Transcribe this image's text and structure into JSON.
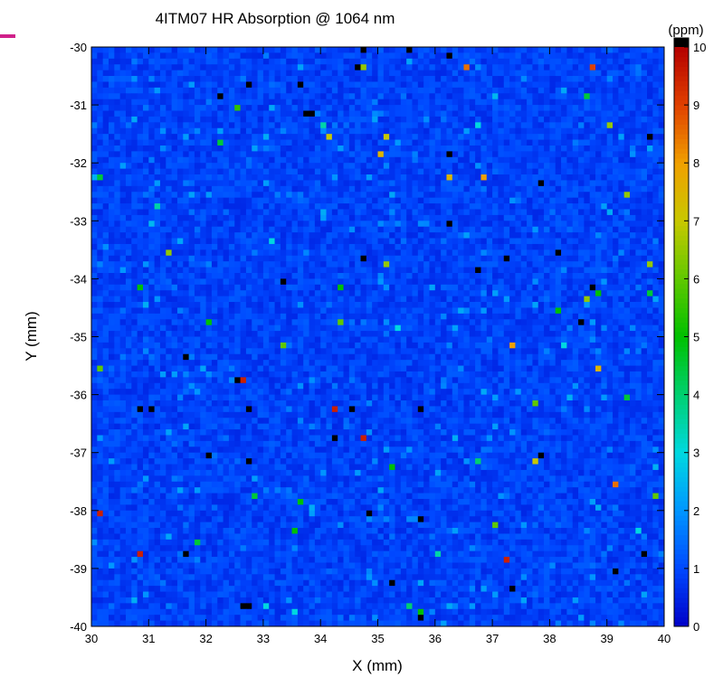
{
  "chart_data": {
    "type": "heatmap",
    "title": "4ITM07 HR Absorption @ 1064 nm",
    "xlabel": "X (mm)",
    "ylabel": "Y (mm)",
    "colorbar_label": "(ppm)",
    "xlim": [
      30,
      40
    ],
    "ylim": [
      -40,
      -30
    ],
    "zlim": [
      0,
      10
    ],
    "x_ticks": [
      "30",
      "31",
      "32",
      "33",
      "34",
      "35",
      "36",
      "37",
      "38",
      "39",
      "40"
    ],
    "y_ticks": [
      "-30",
      "-31",
      "-32",
      "-33",
      "-34",
      "-35",
      "-36",
      "-37",
      "-38",
      "-39",
      "-40"
    ],
    "colorbar_ticks": [
      "0",
      "1",
      "2",
      "3",
      "4",
      "5",
      "6",
      "7",
      "8",
      "9",
      "10"
    ],
    "grid": {
      "nx": 100,
      "ny": 100,
      "cell_mm": 0.1
    },
    "background_value": 0.9,
    "colorscale": [
      "#0000c8",
      "#0048ff",
      "#0096ff",
      "#00d8e0",
      "#00d070",
      "#00c000",
      "#60c800",
      "#c8c800",
      "#f0a000",
      "#e04000",
      "#b40000"
    ],
    "overflow_color": "#000000",
    "hot_spots": [
      {
        "x": 30.1,
        "y": -38.0,
        "v": 9.5
      },
      {
        "x": 30.8,
        "y": -38.7,
        "v": 9.5
      },
      {
        "x": 32.6,
        "y": -35.8,
        "v": 9.5
      },
      {
        "x": 34.2,
        "y": -36.2,
        "v": 9.5
      },
      {
        "x": 34.7,
        "y": -36.8,
        "v": 9.5
      },
      {
        "x": 35.2,
        "y": -37.3,
        "v": 9.3
      },
      {
        "x": 37.2,
        "y": -38.9,
        "v": 9.5
      },
      {
        "x": 38.7,
        "y": -30.4,
        "v": 9.0
      },
      {
        "x": 39.1,
        "y": -37.5,
        "v": 8.5
      },
      {
        "x": 37.4,
        "y": -35.1,
        "v": 8.0
      },
      {
        "x": 36.9,
        "y": -32.2,
        "v": 8.0
      },
      {
        "x": 36.5,
        "y": -30.3,
        "v": 8.5
      },
      {
        "x": 35.0,
        "y": -31.9,
        "v": 7.5
      },
      {
        "x": 34.1,
        "y": -31.5,
        "v": 7.0
      },
      {
        "x": 36.3,
        "y": -32.2,
        "v": 7.5
      },
      {
        "x": 38.9,
        "y": -35.5,
        "v": 7.5
      },
      {
        "x": 37.8,
        "y": -37.1,
        "v": 7.0
      },
      {
        "x": 35.1,
        "y": -31.5,
        "v": 7.0
      },
      {
        "x": 31.4,
        "y": -33.5,
        "v": 6.5
      },
      {
        "x": 34.8,
        "y": -30.4,
        "v": 6.5
      },
      {
        "x": 35.1,
        "y": -33.7,
        "v": 6.5
      },
      {
        "x": 39.8,
        "y": -33.7,
        "v": 6.5
      },
      {
        "x": 39.4,
        "y": -32.5,
        "v": 6.5
      },
      {
        "x": 39.0,
        "y": -31.3,
        "v": 6.5
      },
      {
        "x": 33.4,
        "y": -35.1,
        "v": 6.0
      },
      {
        "x": 34.4,
        "y": -34.8,
        "v": 6.0
      },
      {
        "x": 37.0,
        "y": -38.3,
        "v": 6.0
      },
      {
        "x": 37.7,
        "y": -36.1,
        "v": 6.0
      },
      {
        "x": 30.2,
        "y": -35.5,
        "v": 6.0
      },
      {
        "x": 32.5,
        "y": -31.0,
        "v": 5.5
      },
      {
        "x": 38.6,
        "y": -34.4,
        "v": 6.5
      },
      {
        "x": 39.9,
        "y": -37.8,
        "v": 6.0
      },
      {
        "x": 30.8,
        "y": -34.1,
        "v": 5.0
      },
      {
        "x": 34.4,
        "y": -34.1,
        "v": 5.0
      },
      {
        "x": 32.0,
        "y": -34.7,
        "v": 5.0
      },
      {
        "x": 33.5,
        "y": -38.4,
        "v": 5.0
      },
      {
        "x": 33.6,
        "y": -37.9,
        "v": 5.0
      },
      {
        "x": 38.1,
        "y": -34.5,
        "v": 5.0
      },
      {
        "x": 38.9,
        "y": -34.3,
        "v": 5.0
      },
      {
        "x": 35.2,
        "y": -37.2,
        "v": 5.0
      },
      {
        "x": 39.4,
        "y": -36.0,
        "v": 4.5
      },
      {
        "x": 35.8,
        "y": -39.8,
        "v": 5.0
      },
      {
        "x": 30.2,
        "y": -32.3,
        "v": 4.5
      },
      {
        "x": 32.9,
        "y": -37.7,
        "v": 4.5
      },
      {
        "x": 31.8,
        "y": -38.5,
        "v": 4.5
      },
      {
        "x": 32.3,
        "y": -31.7,
        "v": 4.5
      },
      {
        "x": 38.6,
        "y": -30.9,
        "v": 4.5
      },
      {
        "x": 39.7,
        "y": -34.3,
        "v": 4.5
      },
      {
        "x": 35.5,
        "y": -39.6,
        "v": 4.0
      },
      {
        "x": 36.8,
        "y": -37.1,
        "v": 4.0
      },
      {
        "x": 31.1,
        "y": -32.7,
        "v": 3.5
      },
      {
        "x": 34.0,
        "y": -31.4,
        "v": 3.5
      },
      {
        "x": 36.0,
        "y": -38.7,
        "v": 3.5
      },
      {
        "x": 38.2,
        "y": -35.1,
        "v": 3.0
      },
      {
        "x": 33.0,
        "y": -39.6,
        "v": 3.0
      },
      {
        "x": 35.4,
        "y": -34.9,
        "v": 3.0
      },
      {
        "x": 36.8,
        "y": -31.3,
        "v": 3.0
      },
      {
        "x": 31.0,
        "y": -33.0,
        "v": 2.5
      },
      {
        "x": 33.1,
        "y": -33.4,
        "v": 3.0
      },
      {
        "x": 37.0,
        "y": -30.8,
        "v": 2.5
      },
      {
        "x": 39.5,
        "y": -38.4,
        "v": 3.0
      },
      {
        "x": 33.5,
        "y": -39.7,
        "v": 3.0
      }
    ],
    "saturated_spots": [
      {
        "x": 30.9,
        "y": -36.3
      },
      {
        "x": 31.0,
        "y": -36.3
      },
      {
        "x": 32.8,
        "y": -36.3
      },
      {
        "x": 32.7,
        "y": -36.3
      },
      {
        "x": 34.3,
        "y": -36.7
      },
      {
        "x": 34.2,
        "y": -36.7
      },
      {
        "x": 32.7,
        "y": -39.6
      },
      {
        "x": 32.6,
        "y": -39.6
      },
      {
        "x": 33.8,
        "y": -31.2
      },
      {
        "x": 33.9,
        "y": -31.2
      },
      {
        "x": 38.7,
        "y": -34.1
      },
      {
        "x": 37.9,
        "y": -32.4
      },
      {
        "x": 35.7,
        "y": -39.9
      },
      {
        "x": 34.6,
        "y": -30.3
      },
      {
        "x": 33.6,
        "y": -30.6
      },
      {
        "x": 35.5,
        "y": -30.0
      },
      {
        "x": 36.3,
        "y": -30.1
      },
      {
        "x": 34.8,
        "y": -33.6
      },
      {
        "x": 36.2,
        "y": -31.8
      },
      {
        "x": 32.5,
        "y": -35.8
      },
      {
        "x": 31.6,
        "y": -35.4
      },
      {
        "x": 35.8,
        "y": -38.1
      },
      {
        "x": 34.9,
        "y": -38.0
      },
      {
        "x": 37.4,
        "y": -39.4
      },
      {
        "x": 37.9,
        "y": -37.0
      },
      {
        "x": 35.2,
        "y": -39.3
      },
      {
        "x": 31.7,
        "y": -38.7
      },
      {
        "x": 39.6,
        "y": -38.7
      },
      {
        "x": 38.1,
        "y": -33.5
      },
      {
        "x": 34.5,
        "y": -36.2
      },
      {
        "x": 32.2,
        "y": -30.9
      },
      {
        "x": 32.8,
        "y": -30.7
      },
      {
        "x": 33.4,
        "y": -34.0
      },
      {
        "x": 38.5,
        "y": -34.8
      },
      {
        "x": 39.1,
        "y": -39.0
      },
      {
        "x": 32.0,
        "y": -37.0
      },
      {
        "x": 32.8,
        "y": -37.1
      },
      {
        "x": 36.3,
        "y": -33.0
      },
      {
        "x": 34.8,
        "y": -30.0
      },
      {
        "x": 37.2,
        "y": -33.6
      },
      {
        "x": 39.7,
        "y": -31.5
      },
      {
        "x": 36.8,
        "y": -33.9
      },
      {
        "x": 35.7,
        "y": -36.2
      }
    ]
  }
}
